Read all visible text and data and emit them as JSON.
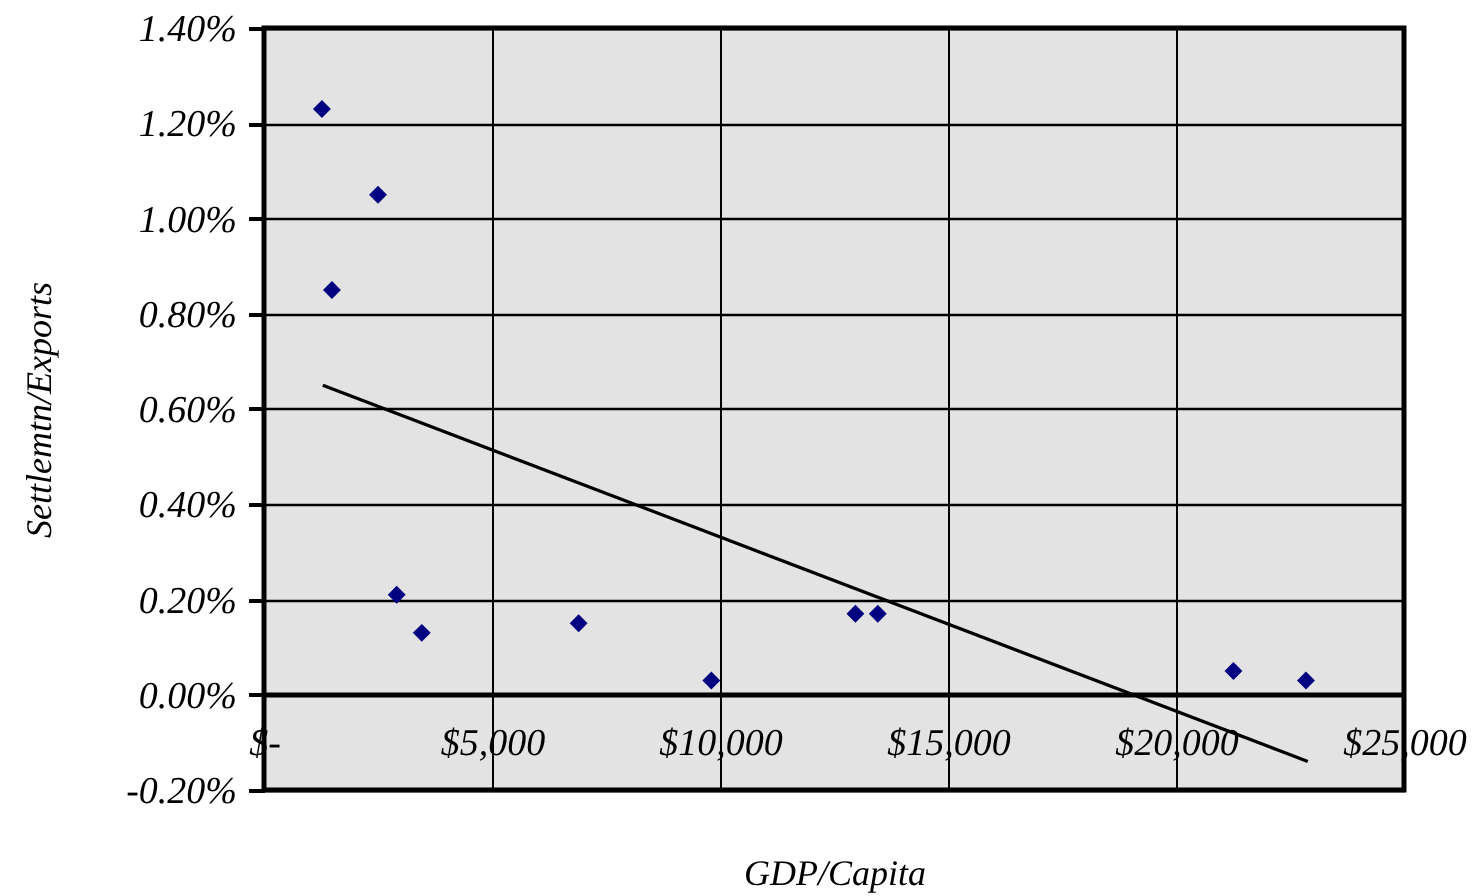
{
  "chart_data": {
    "type": "scatter",
    "xlabel": "GDP/Capita",
    "ylabel": "Settlemtn/Exports",
    "x": [
      1270,
      1490,
      2500,
      2910,
      3460,
      6900,
      9810,
      12970,
      13460,
      21260,
      22850
    ],
    "series": [
      {
        "color": "#000080",
        "marker": "diamond",
        "values": [
          1.23,
          0.85,
          1.05,
          0.21,
          0.13,
          0.15,
          0.03,
          0.17,
          0.17,
          0.05,
          0.03
        ]
      },
      {
        "type": "line",
        "color": "#000000",
        "x": [
          1290,
          22890
        ],
        "values": [
          0.65,
          -0.14
        ]
      }
    ],
    "xlim": [
      0,
      25000
    ],
    "xticks": [
      {
        "value": 0,
        "label": "$-"
      },
      {
        "value": 5000,
        "label": "$5,000"
      },
      {
        "value": 10000,
        "label": "$10,000"
      },
      {
        "value": 15000,
        "label": "$15,000"
      },
      {
        "value": 20000,
        "label": "$20,000"
      },
      {
        "value": 25000,
        "label": "$25,000"
      }
    ],
    "ylim": [
      -0.2,
      1.4
    ],
    "yticks": [
      {
        "value": -0.2,
        "label": "-0.20%"
      },
      {
        "value": 0,
        "label": "0.00%"
      },
      {
        "value": 0.2,
        "label": "0.20%"
      },
      {
        "value": 0.4,
        "label": "0.40%"
      },
      {
        "value": 0.6,
        "label": "0.60%"
      },
      {
        "value": 0.8,
        "label": "0.80%"
      },
      {
        "value": 1.0,
        "label": "1.00%"
      },
      {
        "value": 1.2,
        "label": "1.20%"
      },
      {
        "value": 1.4,
        "label": "1.40%"
      }
    ],
    "grid": true
  }
}
